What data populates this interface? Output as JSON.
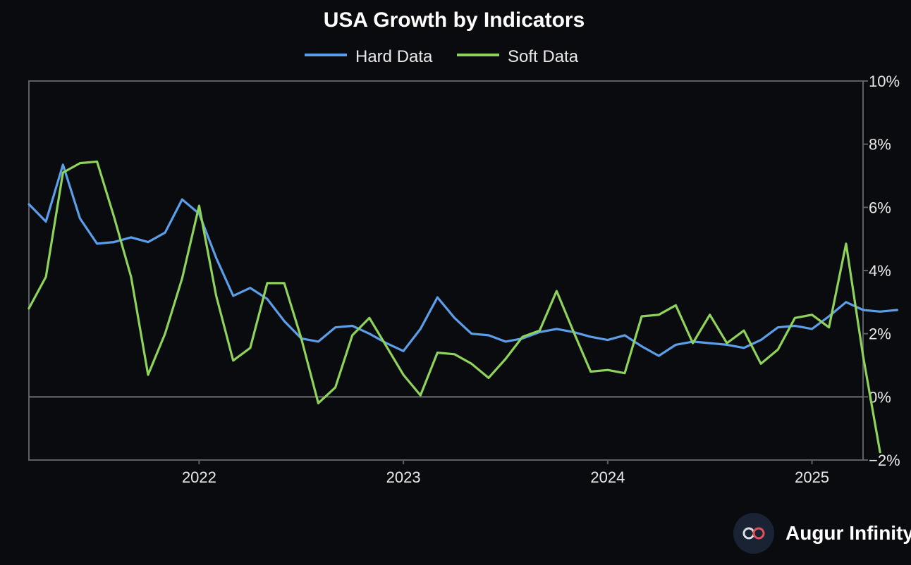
{
  "chart_data": {
    "type": "line",
    "title": "USA Growth by Indicators",
    "ylim": [
      -2,
      10
    ],
    "y_ticks": [
      10,
      8,
      6,
      4,
      2,
      0,
      -2
    ],
    "y_tick_labels": [
      "10%",
      "8%",
      "6%",
      "4%",
      "2%",
      "0%",
      "−2%"
    ],
    "y_axis_position": "right",
    "x_start": "2021-03",
    "x_end": "2025-04",
    "x_ticks": [
      "2022",
      "2023",
      "2024",
      "2025"
    ],
    "legend_position": "top-center",
    "grid": false,
    "zero_line": true,
    "series": [
      {
        "name": "Hard Data",
        "color": "#5b9ee9",
        "values": [
          6.1,
          5.55,
          7.35,
          5.65,
          4.85,
          4.9,
          5.05,
          4.9,
          5.2,
          6.25,
          5.8,
          4.4,
          3.2,
          3.45,
          3.1,
          2.4,
          1.85,
          1.75,
          2.2,
          2.25,
          2.0,
          1.7,
          1.45,
          2.15,
          3.15,
          2.5,
          2.0,
          1.95,
          1.75,
          1.85,
          2.05,
          2.15,
          2.05,
          1.9,
          1.8,
          1.95,
          1.6,
          1.3,
          1.65,
          1.75,
          1.7,
          1.65,
          1.55,
          1.8,
          2.2,
          2.25,
          2.15,
          2.55,
          3.0,
          2.75,
          2.7,
          2.75
        ]
      },
      {
        "name": "Soft Data",
        "color": "#8fd35a",
        "values": [
          2.8,
          3.8,
          7.1,
          7.4,
          7.45,
          5.7,
          3.8,
          0.7,
          2.0,
          3.75,
          6.05,
          3.2,
          1.15,
          1.55,
          3.6,
          3.6,
          1.85,
          -0.2,
          0.3,
          1.95,
          2.5,
          1.6,
          0.7,
          0.05,
          1.4,
          1.35,
          1.05,
          0.6,
          1.2,
          1.9,
          2.1,
          3.35,
          2.05,
          0.8,
          0.85,
          0.75,
          2.55,
          2.6,
          2.9,
          1.7,
          2.6,
          1.7,
          2.1,
          1.05,
          1.5,
          2.5,
          2.6,
          2.2,
          4.85,
          1.3,
          -1.75
        ]
      }
    ]
  },
  "brand": {
    "name": "Augur Infinity",
    "logo_icon": "infinity-icon"
  }
}
